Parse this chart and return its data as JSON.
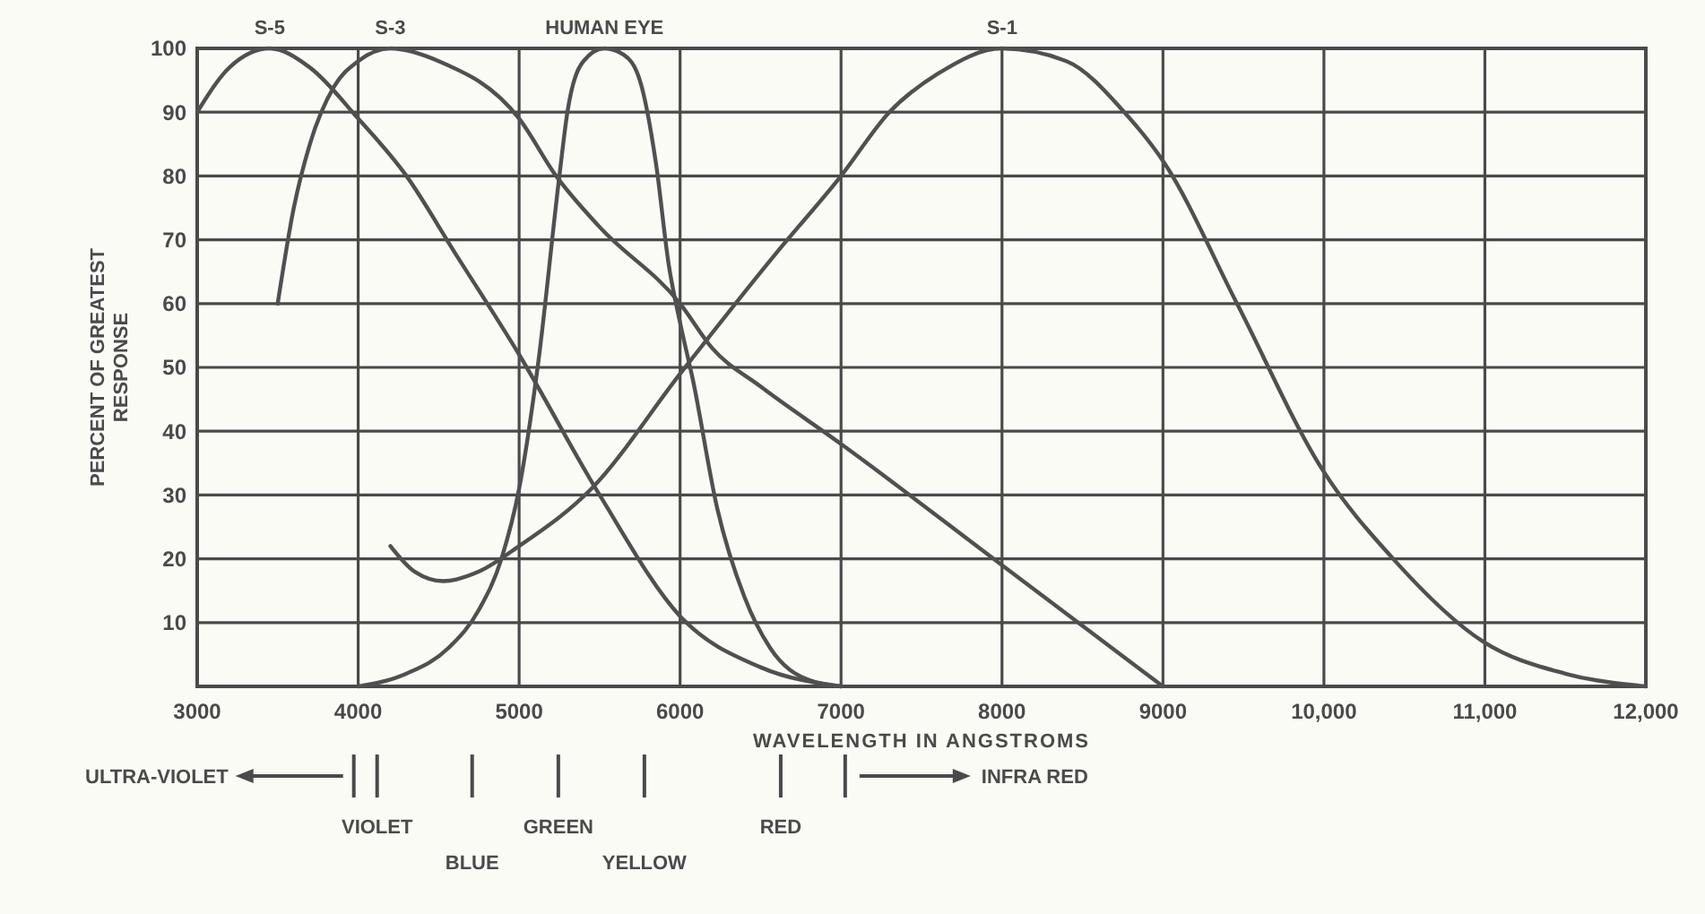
{
  "chart_data": {
    "type": "line",
    "xlabel": "WAVELENGTH IN ANGSTROMS",
    "ylabel": "PERCENT OF GREATEST RESPONSE",
    "xlim": [
      3000,
      12000
    ],
    "ylim": [
      0,
      100
    ],
    "xticks": [
      3000,
      4000,
      5000,
      6000,
      7000,
      8000,
      9000,
      {
        "value": 10000,
        "label": "10,000"
      },
      {
        "value": 11000,
        "label": "11,000"
      },
      {
        "value": 12000,
        "label": "12,000"
      }
    ],
    "yticks": [
      10,
      20,
      30,
      40,
      50,
      60,
      70,
      80,
      90,
      100
    ],
    "grid": true,
    "legend": false,
    "line_style": "solid",
    "marker": "none",
    "series": [
      {
        "name": "S-5",
        "color": "#505050",
        "x": [
          3000,
          3200,
          3450,
          3700,
          4000,
          4300,
          4600,
          5000,
          5500,
          6000,
          6500,
          7000
        ],
        "values": [
          90,
          97,
          100,
          97,
          89,
          80,
          68,
          52,
          30,
          11,
          3,
          0
        ]
      },
      {
        "name": "S-3",
        "color": "#505050",
        "x": [
          3500,
          3600,
          3700,
          3850,
          4000,
          4200,
          4500,
          5000,
          5230,
          5500,
          6000,
          6200,
          6500,
          7000,
          8000,
          9000
        ],
        "values": [
          60,
          75,
          85,
          94,
          98,
          100,
          98,
          89,
          80,
          72,
          60,
          53,
          47,
          38,
          19,
          0
        ]
      },
      {
        "name": "HUMAN EYE",
        "color": "#505050",
        "x": [
          4000,
          4300,
          4560,
          4750,
          4890,
          5000,
          5120,
          5250,
          5300,
          5400,
          5530,
          5650,
          5750,
          5850,
          5930,
          6000,
          6080,
          6230,
          6400,
          6560,
          6800,
          7000
        ],
        "values": [
          0,
          2,
          6,
          12,
          20,
          31,
          51,
          80,
          90,
          98,
          100,
          99,
          95,
          82,
          66,
          57,
          48,
          28,
          14,
          6,
          1,
          0
        ]
      },
      {
        "name": "S-1",
        "color": "#505050",
        "x": [
          4200,
          4350,
          4530,
          4750,
          5000,
          5450,
          6000,
          6600,
          7000,
          7300,
          7600,
          8000,
          8400,
          8760,
          9010,
          9460,
          9990,
          10430,
          10990,
          11500,
          12000
        ],
        "values": [
          22,
          18,
          16.5,
          18,
          22,
          31,
          49,
          68,
          80,
          90,
          96,
          100,
          98,
          90,
          82,
          60,
          34,
          20,
          7,
          2,
          0
        ]
      }
    ],
    "annotations": [
      "ULTRA-VIOLET",
      "VIOLET",
      "BLUE",
      "GREEN",
      "YELLOW",
      "RED",
      "INFRA RED"
    ]
  }
}
